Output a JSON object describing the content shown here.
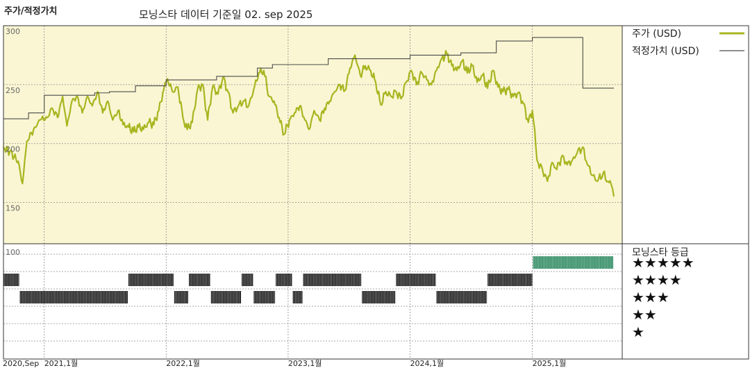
{
  "header": {
    "left_title": "주가/적정가치",
    "center_title": "모닝스타 데이터 기준일 02. sep 2025"
  },
  "colors": {
    "price": "#a8b520",
    "fair_value": "#4a4a4a",
    "plot_bg": "#faf6d3",
    "rating_black": "#1e1e1e",
    "rating_green": "#2e8a62"
  },
  "legend": {
    "price_label": "주가 (USD)",
    "fair_value_label": "적정가치 (USD)",
    "rating_title": "모닝스타 등급"
  },
  "chart_data": {
    "type": "line",
    "yticks": [
      "300",
      "250",
      "200",
      "150"
    ],
    "ylim": [
      115,
      300
    ],
    "xlim": [
      "2020-09-01",
      "2025-09-02"
    ],
    "x_tick_labels": [
      "2020,Sep",
      "2021,1월",
      "2022,1월",
      "2023,1월",
      "2024,1월",
      "2025,1월"
    ],
    "x_tick_dates": [
      "2020-09-01",
      "2021-01-01",
      "2022-01-01",
      "2023-01-01",
      "2024-01-01",
      "2025-01-01"
    ],
    "series": [
      {
        "name": "주가 (USD)",
        "points": [
          [
            "2020-09-01",
            197
          ],
          [
            "2020-09-20",
            193
          ],
          [
            "2020-10-15",
            185
          ],
          [
            "2020-10-28",
            166
          ],
          [
            "2020-11-10",
            202
          ],
          [
            "2020-11-30",
            212
          ],
          [
            "2020-12-20",
            220
          ],
          [
            "2021-01-10",
            222
          ],
          [
            "2021-01-25",
            230
          ],
          [
            "2021-02-10",
            222
          ],
          [
            "2021-02-25",
            240
          ],
          [
            "2021-03-10",
            215
          ],
          [
            "2021-03-25",
            236
          ],
          [
            "2021-04-10",
            240
          ],
          [
            "2021-04-25",
            226
          ],
          [
            "2021-05-10",
            240
          ],
          [
            "2021-05-25",
            232
          ],
          [
            "2021-06-10",
            244
          ],
          [
            "2021-06-25",
            226
          ],
          [
            "2021-07-10",
            236
          ],
          [
            "2021-07-25",
            220
          ],
          [
            "2021-08-10",
            228
          ],
          [
            "2021-08-25",
            216
          ],
          [
            "2021-09-10",
            214
          ],
          [
            "2021-09-25",
            210
          ],
          [
            "2021-10-10",
            214
          ],
          [
            "2021-10-25",
            212
          ],
          [
            "2021-11-10",
            218
          ],
          [
            "2021-11-25",
            216
          ],
          [
            "2021-12-10",
            228
          ],
          [
            "2021-12-25",
            246
          ],
          [
            "2022-01-05",
            255
          ],
          [
            "2022-01-20",
            244
          ],
          [
            "2022-02-05",
            248
          ],
          [
            "2022-02-20",
            222
          ],
          [
            "2022-03-05",
            212
          ],
          [
            "2022-03-20",
            218
          ],
          [
            "2022-04-05",
            246
          ],
          [
            "2022-04-20",
            250
          ],
          [
            "2022-05-05",
            220
          ],
          [
            "2022-05-20",
            248
          ],
          [
            "2022-06-05",
            242
          ],
          [
            "2022-06-20",
            256
          ],
          [
            "2022-07-05",
            244
          ],
          [
            "2022-07-20",
            226
          ],
          [
            "2022-08-05",
            232
          ],
          [
            "2022-08-20",
            236
          ],
          [
            "2022-09-05",
            232
          ],
          [
            "2022-09-20",
            246
          ],
          [
            "2022-10-05",
            260
          ],
          [
            "2022-10-20",
            262
          ],
          [
            "2022-11-05",
            240
          ],
          [
            "2022-11-20",
            236
          ],
          [
            "2022-12-05",
            222
          ],
          [
            "2022-12-20",
            208
          ],
          [
            "2023-01-05",
            220
          ],
          [
            "2023-01-20",
            226
          ],
          [
            "2023-02-05",
            232
          ],
          [
            "2023-02-20",
            220
          ],
          [
            "2023-03-05",
            212
          ],
          [
            "2023-03-20",
            228
          ],
          [
            "2023-04-05",
            220
          ],
          [
            "2023-04-20",
            230
          ],
          [
            "2023-05-05",
            236
          ],
          [
            "2023-05-20",
            244
          ],
          [
            "2023-06-05",
            250
          ],
          [
            "2023-06-20",
            245
          ],
          [
            "2023-07-05",
            264
          ],
          [
            "2023-07-20",
            275
          ],
          [
            "2023-08-05",
            258
          ],
          [
            "2023-08-20",
            266
          ],
          [
            "2023-09-05",
            262
          ],
          [
            "2023-09-20",
            252
          ],
          [
            "2023-10-05",
            233
          ],
          [
            "2023-10-20",
            244
          ],
          [
            "2023-11-05",
            240
          ],
          [
            "2023-11-20",
            244
          ],
          [
            "2023-12-05",
            238
          ],
          [
            "2023-12-20",
            252
          ],
          [
            "2024-01-05",
            262
          ],
          [
            "2024-01-20",
            250
          ],
          [
            "2024-02-05",
            260
          ],
          [
            "2024-02-20",
            254
          ],
          [
            "2024-03-05",
            250
          ],
          [
            "2024-03-20",
            262
          ],
          [
            "2024-04-05",
            272
          ],
          [
            "2024-04-20",
            276
          ],
          [
            "2024-05-05",
            266
          ],
          [
            "2024-05-20",
            262
          ],
          [
            "2024-06-05",
            270
          ],
          [
            "2024-06-20",
            260
          ],
          [
            "2024-07-05",
            266
          ],
          [
            "2024-07-20",
            252
          ],
          [
            "2024-08-05",
            258
          ],
          [
            "2024-08-20",
            247
          ],
          [
            "2024-09-05",
            262
          ],
          [
            "2024-09-20",
            248
          ],
          [
            "2024-10-05",
            244
          ],
          [
            "2024-10-20",
            246
          ],
          [
            "2024-11-05",
            240
          ],
          [
            "2024-11-20",
            243
          ],
          [
            "2024-12-05",
            234
          ],
          [
            "2024-12-20",
            218
          ],
          [
            "2025-01-01",
            228
          ],
          [
            "2025-01-08",
            212
          ],
          [
            "2025-01-15",
            186
          ],
          [
            "2025-02-01",
            177
          ],
          [
            "2025-02-15",
            168
          ],
          [
            "2025-03-01",
            184
          ],
          [
            "2025-03-15",
            178
          ],
          [
            "2025-04-01",
            190
          ],
          [
            "2025-04-15",
            182
          ],
          [
            "2025-05-01",
            186
          ],
          [
            "2025-05-15",
            192
          ],
          [
            "2025-06-01",
            197
          ],
          [
            "2025-06-15",
            182
          ],
          [
            "2025-07-01",
            173
          ],
          [
            "2025-07-15",
            168
          ],
          [
            "2025-08-01",
            175
          ],
          [
            "2025-08-15",
            168
          ],
          [
            "2025-08-25",
            165
          ],
          [
            "2025-09-02",
            155
          ]
        ]
      },
      {
        "name": "적정가치 (USD)",
        "step": true,
        "points": [
          [
            "2020-09-01",
            221
          ],
          [
            "2020-11-15",
            226
          ],
          [
            "2021-01-01",
            241
          ],
          [
            "2021-06-01",
            243
          ],
          [
            "2021-07-15",
            244
          ],
          [
            "2021-10-01",
            249
          ],
          [
            "2022-01-01",
            254
          ],
          [
            "2022-06-01",
            257
          ],
          [
            "2022-10-01",
            264
          ],
          [
            "2022-11-15",
            267
          ],
          [
            "2023-05-01",
            272
          ],
          [
            "2024-01-01",
            275
          ],
          [
            "2024-06-01",
            277
          ],
          [
            "2024-09-15",
            287
          ],
          [
            "2025-01-01",
            290
          ],
          [
            "2025-05-01",
            290
          ],
          [
            "2025-06-01",
            247
          ],
          [
            "2025-09-02",
            247
          ]
        ]
      }
    ],
    "ratings": {
      "title": "모닝스타 등급",
      "levels": [
        "★★★★★",
        "★★★★",
        "★★★",
        "★★",
        "★"
      ],
      "segments": [
        {
          "start": "2020-09-01",
          "end": "2020-10-20",
          "stars": 4
        },
        {
          "start": "2020-10-20",
          "end": "2021-09-10",
          "stars": 3
        },
        {
          "start": "2021-09-10",
          "end": "2022-01-25",
          "stars": 4
        },
        {
          "start": "2022-01-25",
          "end": "2022-03-10",
          "stars": 3
        },
        {
          "start": "2022-03-10",
          "end": "2022-05-15",
          "stars": 4
        },
        {
          "start": "2022-05-15",
          "end": "2022-08-15",
          "stars": 3
        },
        {
          "start": "2022-08-15",
          "end": "2022-09-20",
          "stars": 4
        },
        {
          "start": "2022-09-20",
          "end": "2022-11-25",
          "stars": 3
        },
        {
          "start": "2022-11-25",
          "end": "2023-01-15",
          "stars": 4
        },
        {
          "start": "2023-01-15",
          "end": "2023-02-15",
          "stars": 3
        },
        {
          "start": "2023-02-15",
          "end": "2023-08-10",
          "stars": 4
        },
        {
          "start": "2023-08-10",
          "end": "2023-11-20",
          "stars": 3
        },
        {
          "start": "2023-11-20",
          "end": "2024-03-20",
          "stars": 4
        },
        {
          "start": "2024-03-20",
          "end": "2024-08-20",
          "stars": 3
        },
        {
          "start": "2024-08-20",
          "end": "2025-01-03",
          "stars": 4
        },
        {
          "start": "2025-01-03",
          "end": "2025-09-02",
          "stars": 5
        }
      ]
    },
    "rating_axis_label": "100",
    "grid": true,
    "legend_position": "right"
  }
}
